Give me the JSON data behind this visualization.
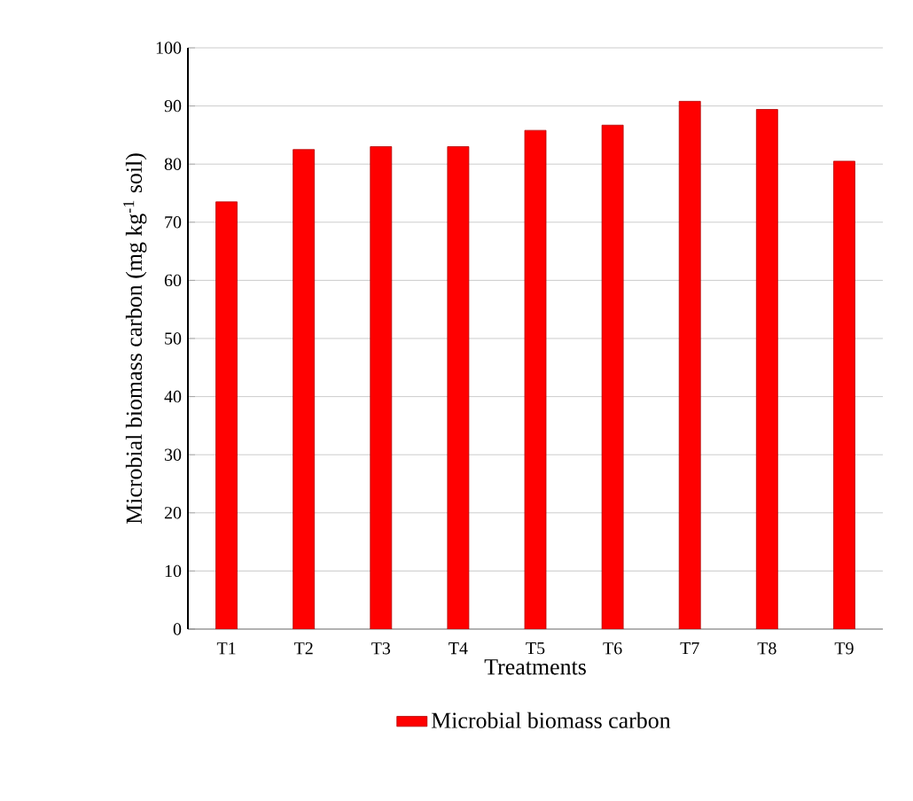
{
  "chart_data": {
    "type": "bar",
    "ylabel": "Microbial biomass carbon (mg  kg$^{-1}$ soil)",
    "xlabel": "Treatments",
    "categories": [
      "T1",
      "T2",
      "T3",
      "T4",
      "T5",
      "T6",
      "T7",
      "T8",
      "T9"
    ],
    "series": [
      {
        "name": "Microbial biomass carbon",
        "color": "#ff0000",
        "values": [
          73.5,
          82.5,
          83,
          83,
          85.8,
          86.7,
          90.8,
          89.4,
          80.5
        ]
      }
    ],
    "ylim": [
      0,
      100
    ],
    "yticks": [
      0,
      10,
      20,
      30,
      40,
      50,
      60,
      70,
      80,
      90,
      100
    ],
    "grid": "y",
    "legend": "bottom"
  }
}
